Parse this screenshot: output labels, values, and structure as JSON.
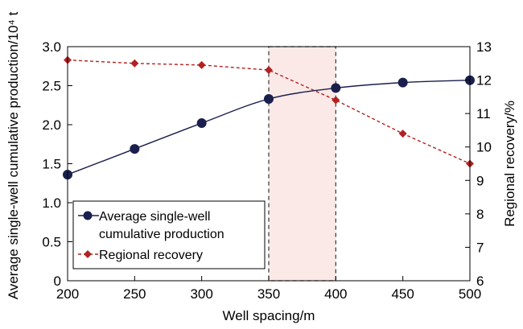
{
  "chart_data": {
    "type": "line",
    "xlabel": "Well spacing/m",
    "ylabel_left": "Average single-well cumulative production/10⁴ t",
    "ylabel_right": "Regional recovery/%",
    "x": [
      200,
      250,
      300,
      350,
      400,
      450,
      500
    ],
    "xlim": [
      200,
      500
    ],
    "ylim_left": [
      0,
      3.0
    ],
    "ylim_right": [
      6,
      13
    ],
    "x_ticks": [
      "200",
      "250",
      "300",
      "350",
      "400",
      "450",
      "500"
    ],
    "y_left_ticks": [
      "0",
      "0.5",
      "1.0",
      "1.5",
      "2.0",
      "2.5",
      "3.0"
    ],
    "y_right_ticks": [
      "6",
      "7",
      "8",
      "9",
      "10",
      "11",
      "12",
      "13"
    ],
    "highlight_range": [
      350,
      400
    ],
    "highlight_color": "#fbe9e7",
    "series": [
      {
        "name_line1": "Average single-well",
        "name_line2": "cumulative production",
        "axis": "left",
        "color": "#1a1f4d",
        "marker": "circle",
        "line_style": "solid",
        "values": [
          1.36,
          1.69,
          2.02,
          2.33,
          2.47,
          2.54,
          2.57
        ]
      },
      {
        "name_line1": "Regional recovery",
        "axis": "right",
        "color": "#b22222",
        "marker": "diamond",
        "line_style": "dashed",
        "values": [
          12.6,
          12.5,
          12.45,
          12.3,
          11.4,
          10.4,
          9.5
        ]
      }
    ]
  }
}
